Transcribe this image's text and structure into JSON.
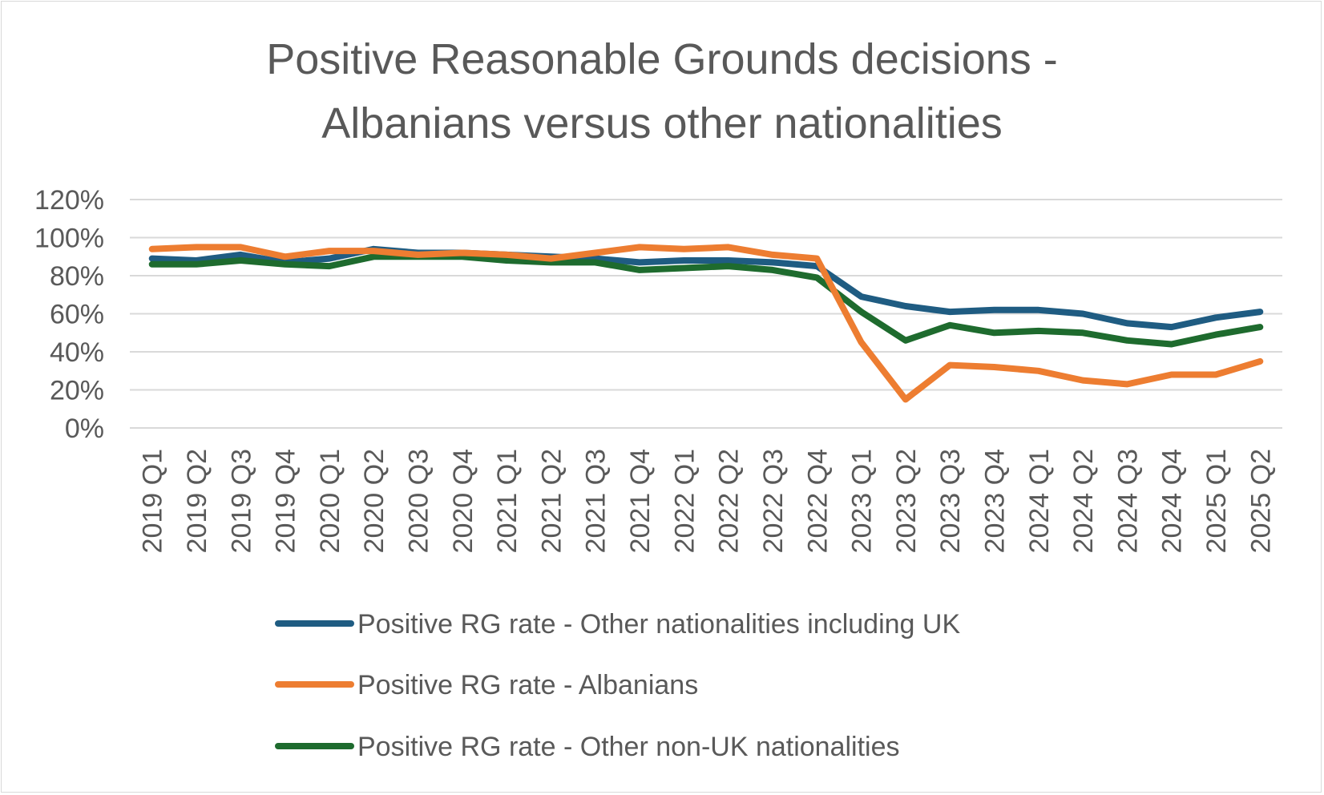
{
  "chart_data": {
    "type": "line",
    "title_lines": [
      "Positive Reasonable Grounds decisions -",
      "Albanians versus other nationalities"
    ],
    "categories": [
      "2019 Q1",
      "2019 Q2",
      "2019 Q3",
      "2019 Q4",
      "2020 Q1",
      "2020 Q2",
      "2020 Q3",
      "2020 Q4",
      "2021 Q1",
      "2021 Q2",
      "2021 Q3",
      "2021 Q4",
      "2022 Q1",
      "2022 Q2",
      "2022 Q3",
      "2022 Q4",
      "2023 Q1",
      "2023 Q2",
      "2023 Q3",
      "2023 Q4",
      "2024 Q1",
      "2024 Q2",
      "2024 Q3",
      "2024 Q4",
      "2025 Q1",
      "2025 Q2"
    ],
    "ylim": [
      0,
      120
    ],
    "yticks": [
      0,
      20,
      40,
      60,
      80,
      100,
      120
    ],
    "ytick_labels": [
      "0%",
      "20%",
      "40%",
      "60%",
      "80%",
      "100%",
      "120%"
    ],
    "grid": true,
    "legend_position": "bottom",
    "series": [
      {
        "name": "Positive RG rate - Other nationalities including UK",
        "color": "#1f5c82",
        "values": [
          89,
          88,
          91,
          87,
          89,
          94,
          92,
          92,
          91,
          90,
          89,
          87,
          88,
          88,
          87,
          85,
          69,
          64,
          61,
          62,
          62,
          60,
          55,
          53,
          58,
          61
        ]
      },
      {
        "name": "Positive RG rate - Albanians",
        "color": "#ed7d31",
        "values": [
          94,
          95,
          95,
          90,
          93,
          93,
          91,
          92,
          91,
          89,
          92,
          95,
          94,
          95,
          91,
          89,
          45,
          15,
          33,
          32,
          30,
          25,
          23,
          28,
          28,
          35
        ]
      },
      {
        "name": "Positive RG rate - Other non-UK nationalities",
        "color": "#1e6b2e",
        "values": [
          86,
          86,
          88,
          86,
          85,
          90,
          90,
          90,
          88,
          87,
          87,
          83,
          84,
          85,
          83,
          79,
          61,
          46,
          54,
          50,
          51,
          50,
          46,
          44,
          49,
          53
        ]
      }
    ]
  }
}
